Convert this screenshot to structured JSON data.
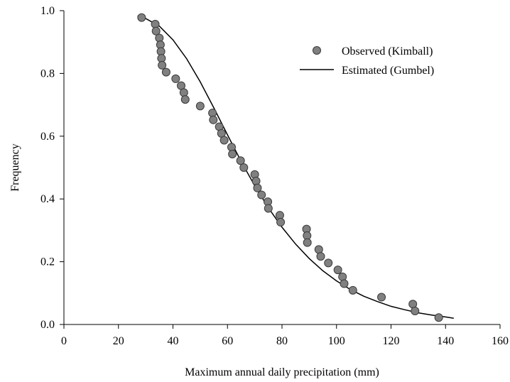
{
  "chart_data": {
    "type": "scatter",
    "title": "",
    "xlabel": "Maximum annual daily precipitation (mm)",
    "ylabel": "Frequency",
    "xlim": [
      0,
      160
    ],
    "ylim": [
      0,
      1.0
    ],
    "x_ticks": [
      0,
      20,
      40,
      60,
      80,
      100,
      120,
      140,
      160
    ],
    "y_ticks": [
      0.0,
      0.2,
      0.4,
      0.6,
      0.8,
      1.0
    ],
    "x_tick_labels": [
      "0",
      "20",
      "40",
      "60",
      "80",
      "100",
      "120",
      "140",
      "160"
    ],
    "y_tick_labels": [
      "0.0",
      "0.2",
      "0.4",
      "0.6",
      "0.8",
      "1.0"
    ],
    "grid": false,
    "legend_position": "top-right",
    "series": [
      {
        "name": "Observed (Kimball)",
        "kind": "scatter",
        "color": "#808080",
        "edge_color": "#3a3a3a",
        "x": [
          28.5,
          33.5,
          33.8,
          35.0,
          35.4,
          35.6,
          35.8,
          36.0,
          37.5,
          41.0,
          43.0,
          44.0,
          44.5,
          50.0,
          54.5,
          54.8,
          57.0,
          57.8,
          58.8,
          61.5,
          61.8,
          64.8,
          66.0,
          70.0,
          70.5,
          71.0,
          72.5,
          74.8,
          75.0,
          79.2,
          79.5,
          89.0,
          89.2,
          89.3,
          93.5,
          94.2,
          97.0,
          100.5,
          102.2,
          102.8,
          106.0,
          116.5,
          128.0,
          128.8,
          137.5
        ],
        "y": [
          0.978,
          0.957,
          0.935,
          0.913,
          0.891,
          0.87,
          0.848,
          0.826,
          0.804,
          0.783,
          0.761,
          0.739,
          0.717,
          0.696,
          0.674,
          0.652,
          0.63,
          0.609,
          0.587,
          0.565,
          0.543,
          0.522,
          0.5,
          0.478,
          0.457,
          0.435,
          0.413,
          0.391,
          0.37,
          0.348,
          0.326,
          0.304,
          0.283,
          0.261,
          0.239,
          0.217,
          0.196,
          0.174,
          0.152,
          0.13,
          0.109,
          0.087,
          0.065,
          0.043,
          0.022
        ]
      },
      {
        "name": "Estimated (Gumbel)",
        "kind": "line",
        "color": "#000000",
        "x": [
          27,
          30,
          35,
          40,
          45,
          50,
          55,
          60,
          65,
          70,
          75,
          80,
          85,
          90,
          95,
          100,
          105,
          110,
          115,
          120,
          125,
          130,
          135,
          140,
          143
        ],
        "y": [
          0.983,
          0.975,
          0.951,
          0.907,
          0.847,
          0.773,
          0.69,
          0.604,
          0.52,
          0.442,
          0.372,
          0.31,
          0.256,
          0.21,
          0.171,
          0.139,
          0.112,
          0.09,
          0.073,
          0.058,
          0.047,
          0.037,
          0.03,
          0.024,
          0.02
        ]
      }
    ]
  }
}
